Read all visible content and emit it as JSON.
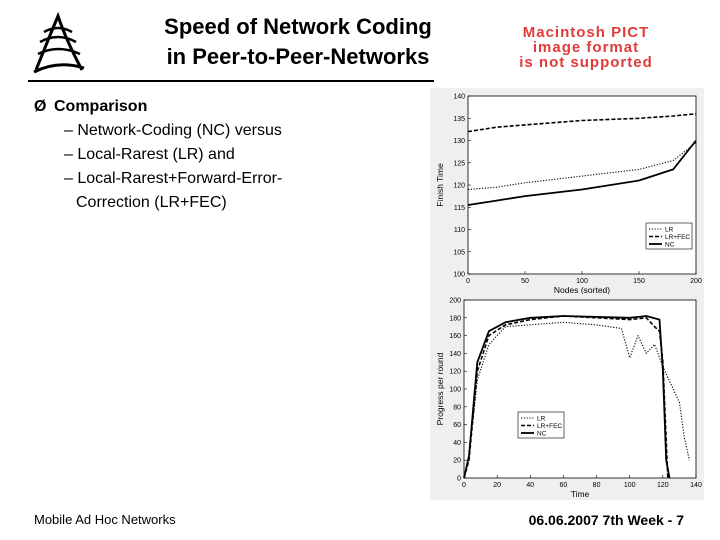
{
  "slide": {
    "title_line1": "Speed of Network Coding",
    "title_line2": "in Peer-to-Peer-Networks",
    "pict_placeholder": [
      "Macintosh PICT",
      "image format",
      "is not supported"
    ],
    "bullet_main": "Comparison",
    "sub_bullets": [
      "– Network-Coding (NC) versus",
      "– Local-Rarest (LR) and",
      "– Local-Rarest+Forward-Error-",
      "Correction (LR+FEC)"
    ],
    "footer_left": "Mobile Ad Hoc Networks",
    "footer_right": "06.06.2007 7th Week - 7"
  },
  "chart_data": [
    {
      "type": "line",
      "xlabel": "Nodes (sorted)",
      "ylabel": "Finish Time",
      "xlim": [
        0,
        200
      ],
      "ylim": [
        100,
        140
      ],
      "xticks": [
        0,
        50,
        100,
        150,
        200
      ],
      "yticks": [
        100,
        105,
        110,
        115,
        120,
        125,
        130,
        135,
        140
      ],
      "legend": {
        "position": "bottom-right",
        "entries": [
          "LR",
          "LR+FEC",
          "NC"
        ]
      },
      "series": [
        {
          "name": "LR",
          "style": "dotted",
          "x": [
            0,
            25,
            50,
            100,
            150,
            180,
            200
          ],
          "y": [
            119,
            119.5,
            120.5,
            122,
            123.5,
            125.5,
            129.5
          ]
        },
        {
          "name": "LR+FEC",
          "style": "dashed",
          "x": [
            0,
            25,
            50,
            100,
            150,
            180,
            200
          ],
          "y": [
            132,
            133,
            133.5,
            134.5,
            135,
            135.5,
            136
          ]
        },
        {
          "name": "NC",
          "style": "solid",
          "x": [
            0,
            25,
            50,
            100,
            150,
            180,
            200
          ],
          "y": [
            115.5,
            116.5,
            117.5,
            119,
            121,
            123.5,
            130
          ]
        }
      ]
    },
    {
      "type": "line",
      "xlabel": "Time",
      "ylabel": "Progress per round",
      "xlim": [
        0,
        140
      ],
      "ylim": [
        0,
        200
      ],
      "xticks": [
        0,
        20,
        40,
        60,
        80,
        100,
        120,
        140
      ],
      "yticks": [
        0,
        20,
        40,
        60,
        80,
        100,
        120,
        140,
        160,
        180,
        200
      ],
      "legend": {
        "position": "bottom-left",
        "entries": [
          "LR",
          "LR+FEC",
          "NC"
        ]
      },
      "series": [
        {
          "name": "LR",
          "style": "dotted",
          "x": [
            0,
            3,
            8,
            15,
            25,
            60,
            80,
            95,
            100,
            105,
            110,
            115,
            120,
            125,
            130,
            133,
            136
          ],
          "y": [
            0,
            25,
            110,
            150,
            170,
            175,
            172,
            168,
            135,
            160,
            140,
            150,
            125,
            105,
            85,
            45,
            20
          ]
        },
        {
          "name": "LR+FEC",
          "style": "dashed",
          "x": [
            0,
            3,
            8,
            15,
            25,
            40,
            60,
            80,
            100,
            110,
            115,
            118,
            120,
            123
          ],
          "y": [
            0,
            20,
            120,
            160,
            172,
            178,
            182,
            180,
            178,
            180,
            170,
            165,
            130,
            0
          ]
        },
        {
          "name": "NC",
          "style": "solid",
          "x": [
            0,
            3,
            8,
            15,
            25,
            40,
            60,
            80,
            100,
            110,
            118,
            120,
            122,
            124
          ],
          "y": [
            0,
            25,
            130,
            165,
            175,
            180,
            182,
            181,
            180,
            182,
            178,
            120,
            20,
            0
          ]
        }
      ]
    }
  ]
}
